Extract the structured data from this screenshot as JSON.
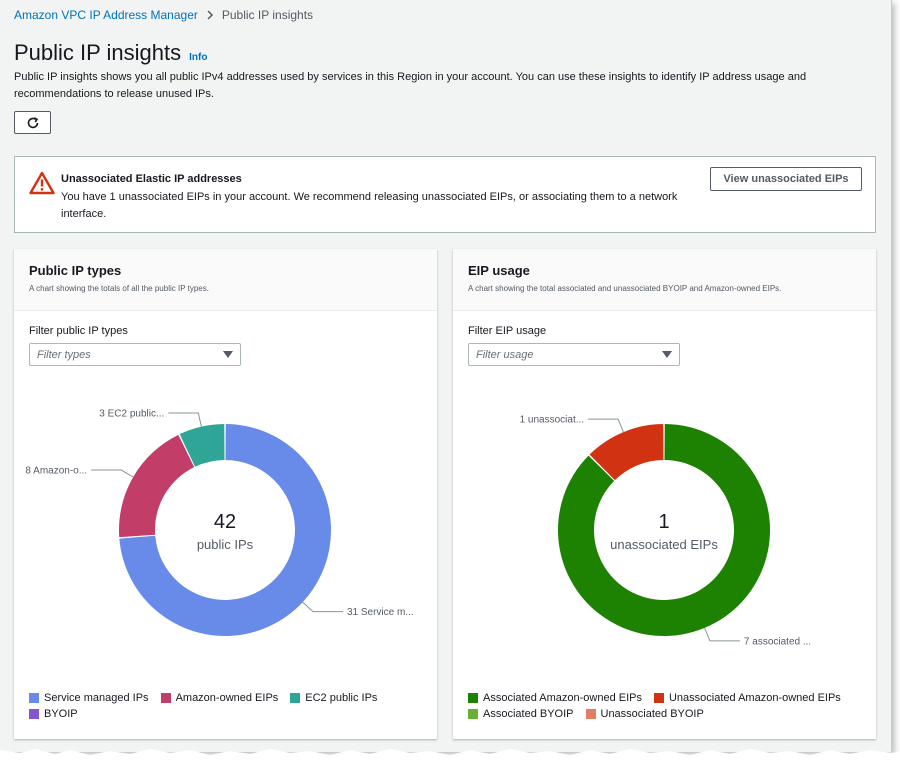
{
  "breadcrumb": {
    "parent": "Amazon VPC IP Address Manager",
    "current": "Public IP insights"
  },
  "header": {
    "title": "Public IP insights",
    "info": "Info",
    "description": "Public IP insights shows you all public IPv4 addresses used by services in this Region in your account. You can use these insights to identify IP address usage and recommendations to release unused IPs."
  },
  "alert": {
    "title": "Unassociated Elastic IP addresses",
    "body": "You have 1 unassociated EIPs in your account. We recommend releasing unassociated EIPs, or associating them to a network interface.",
    "button": "View unassociated EIPs"
  },
  "panels": {
    "types": {
      "title": "Public IP types",
      "subtitle": "A chart showing the totals of all the public IP types.",
      "filter_label": "Filter public IP types",
      "filter_placeholder": "Filter types",
      "center_value": "42",
      "center_label": "public IPs"
    },
    "eip": {
      "title": "EIP usage",
      "subtitle": "A chart showing the total associated and unassociated BYOIP and Amazon-owned EIPs.",
      "filter_label": "Filter EIP usage",
      "filter_placeholder": "Filter usage",
      "center_value": "1",
      "center_label": "unassociated EIPs"
    }
  },
  "colors": {
    "service_managed": "#688ae8",
    "amazon_owned": "#c33d69",
    "ec2_public": "#2ea597",
    "byoip": "#8456ce",
    "associated_amazon": "#1d8102",
    "unassociated_amazon": "#d13212",
    "associated_byoip": "#6aaf35",
    "unassociated_byoip": "#e07f61"
  },
  "chart_data": [
    {
      "type": "pie",
      "title": "Public IP types",
      "categories": [
        "Service managed IPs",
        "Amazon-owned EIPs",
        "EC2 public IPs",
        "BYOIP"
      ],
      "values": [
        31,
        8,
        3,
        0
      ],
      "slice_labels": [
        "31 Service m...",
        "8 Amazon-o...",
        "3 EC2 public...",
        ""
      ],
      "total": 42,
      "legend": "bottom"
    },
    {
      "type": "pie",
      "title": "EIP usage",
      "categories": [
        "Associated Amazon-owned EIPs",
        "Unassociated Amazon-owned EIPs",
        "Associated BYOIP",
        "Unassociated BYOIP"
      ],
      "values": [
        7,
        1,
        0,
        0
      ],
      "slice_labels": [
        "7 associated ...",
        "1 unassociat...",
        "",
        ""
      ],
      "legend": "bottom"
    }
  ]
}
